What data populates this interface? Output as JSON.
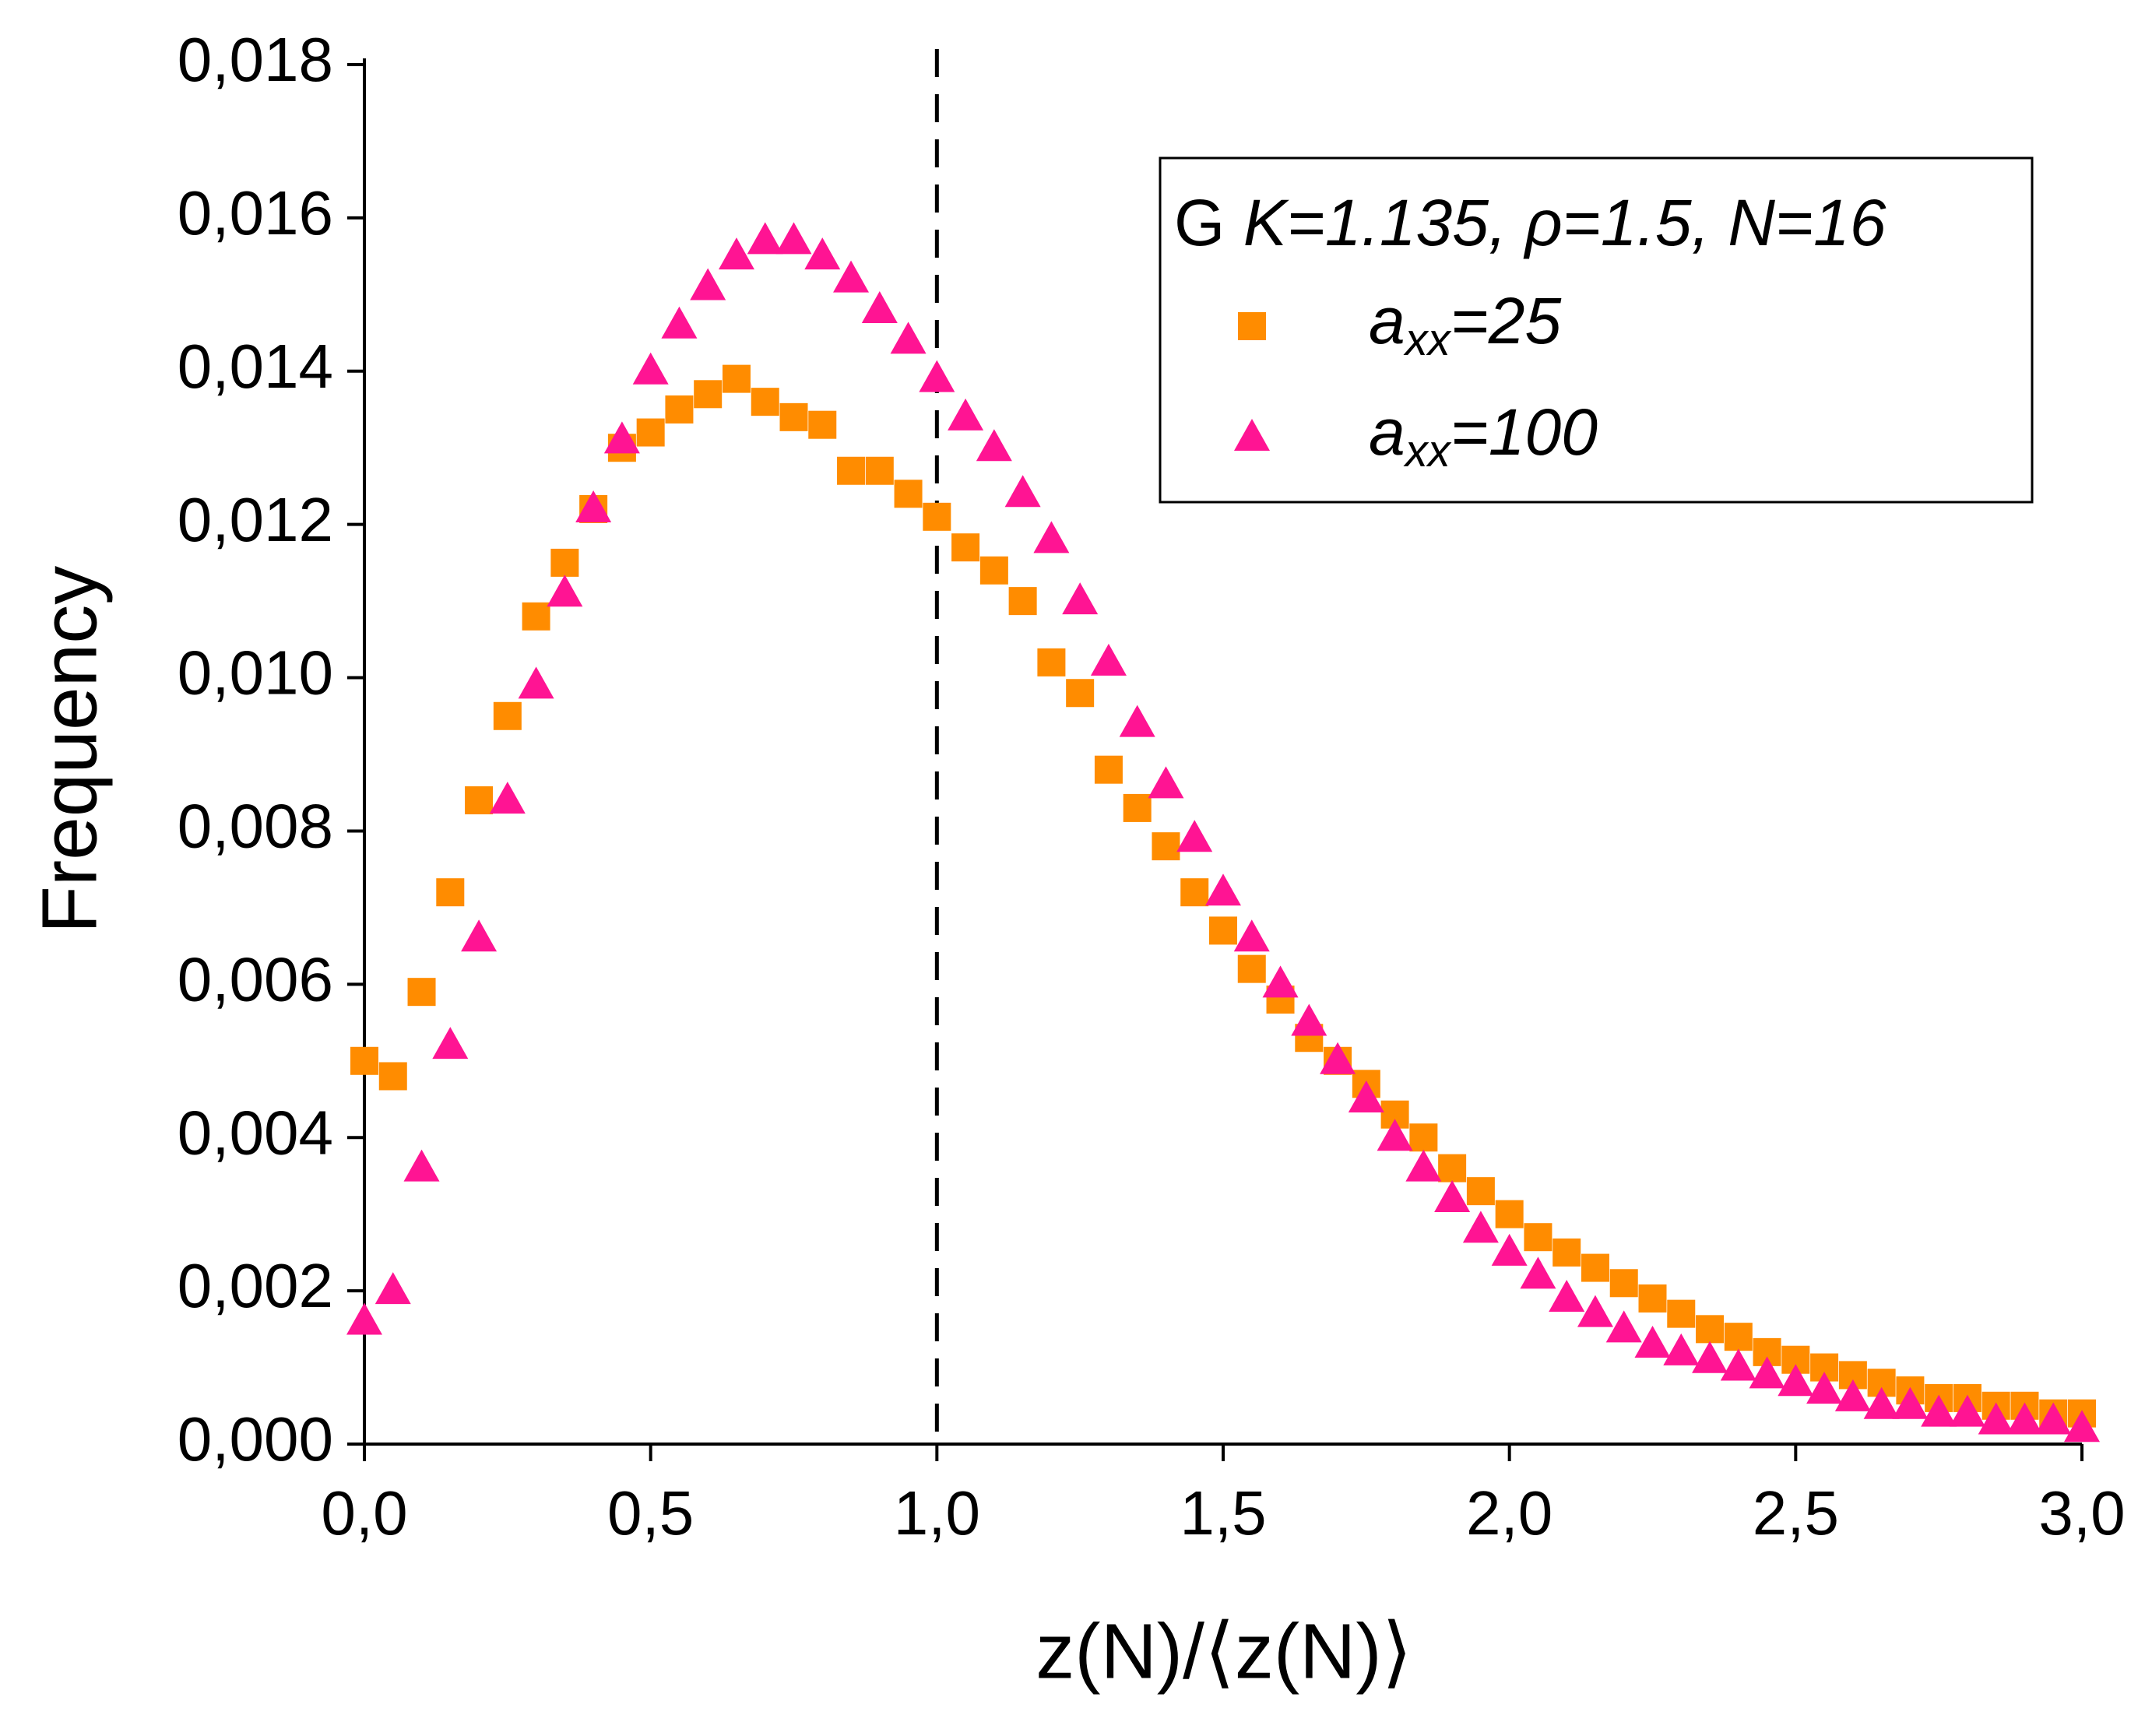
{
  "chart_data": {
    "type": "scatter",
    "x_label": "z(N)/⟨z(N)⟩",
    "y_label": "Frequency",
    "legend_title": "G K=1.135, ρ=1.5, N=16",
    "legend": "upper right",
    "x": [
      0,
      0.05,
      0.1,
      0.15,
      0.2,
      0.25,
      0.3,
      0.35,
      0.4,
      0.45,
      0.5,
      0.55,
      0.6,
      0.65,
      0.7,
      0.75,
      0.8,
      0.85,
      0.9,
      0.95,
      1,
      1.05,
      1.1,
      1.15,
      1.2,
      1.25,
      1.3,
      1.35,
      1.4,
      1.45,
      1.5,
      1.55,
      1.6,
      1.65,
      1.7,
      1.75,
      1.8,
      1.85,
      1.9,
      1.95,
      2,
      2.05,
      2.1,
      2.15,
      2.2,
      2.25,
      2.3,
      2.35,
      2.4,
      2.45,
      2.5,
      2.55,
      2.6,
      2.65,
      2.7,
      2.75,
      2.8,
      2.85,
      2.9,
      2.95,
      3
    ],
    "series": [
      {
        "name": "axx=25",
        "color": "#ff8c00",
        "marker": "square",
        "values": [
          0.005,
          0.0048,
          0.0059,
          0.0072,
          0.0084,
          0.0095,
          0.0108,
          0.0115,
          0.0122,
          0.013,
          0.0132,
          0.0135,
          0.0137,
          0.0139,
          0.0136,
          0.0134,
          0.0133,
          0.0127,
          0.0127,
          0.0124,
          0.0121,
          0.0117,
          0.0114,
          0.011,
          0.0102,
          0.0098,
          0.0088,
          0.0083,
          0.0078,
          0.0072,
          0.0067,
          0.0062,
          0.0058,
          0.0053,
          0.005,
          0.0047,
          0.0043,
          0.004,
          0.0036,
          0.0033,
          0.003,
          0.0027,
          0.0025,
          0.0023,
          0.0021,
          0.0019,
          0.0017,
          0.0015,
          0.0014,
          0.0012,
          0.0011,
          0.001,
          0.0009,
          0.0008,
          0.0007,
          0.0006,
          0.0006,
          0.0005,
          0.0005,
          0.0004,
          0.0004
        ]
      },
      {
        "name": "axx=100",
        "color": "#ff1493",
        "marker": "triangle",
        "values": [
          0.0016,
          0.002,
          0.0036,
          0.0052,
          0.0066,
          0.0084,
          0.0099,
          0.0111,
          0.0122,
          0.0131,
          0.014,
          0.0146,
          0.0151,
          0.0155,
          0.0157,
          0.0157,
          0.0155,
          0.0152,
          0.0148,
          0.0144,
          0.0139,
          0.0134,
          0.013,
          0.0124,
          0.0118,
          0.011,
          0.0102,
          0.0094,
          0.0086,
          0.0079,
          0.0072,
          0.0066,
          0.006,
          0.0055,
          0.005,
          0.0045,
          0.004,
          0.0036,
          0.0032,
          0.0028,
          0.0025,
          0.0022,
          0.0019,
          0.0017,
          0.0015,
          0.0013,
          0.0012,
          0.0011,
          0.001,
          0.0009,
          0.0008,
          0.0007,
          0.0006,
          0.0005,
          0.0005,
          0.0004,
          0.0004,
          0.0003,
          0.0003,
          0.0003,
          0.0002
        ]
      }
    ],
    "reference_line": {
      "x": 1,
      "style": "dashed"
    },
    "xlim": [
      0,
      3
    ],
    "ylim": [
      0,
      0.018
    ],
    "xticks": [
      {
        "value": 0,
        "label": "0,0"
      },
      {
        "value": 0.5,
        "label": "0,5"
      },
      {
        "value": 1,
        "label": "1,0"
      },
      {
        "value": 1.5,
        "label": "1,5"
      },
      {
        "value": 2,
        "label": "2,0"
      },
      {
        "value": 2.5,
        "label": "2,5"
      },
      {
        "value": 3,
        "label": "3,0"
      }
    ],
    "yticks": [
      {
        "value": 0,
        "label": "0,000"
      },
      {
        "value": 0.002,
        "label": "0,002"
      },
      {
        "value": 0.004,
        "label": "0,004"
      },
      {
        "value": 0.006,
        "label": "0,006"
      },
      {
        "value": 0.008,
        "label": "0,008"
      },
      {
        "value": 0.01,
        "label": "0,010"
      },
      {
        "value": 0.012,
        "label": "0,012"
      },
      {
        "value": 0.014,
        "label": "0,014"
      },
      {
        "value": 0.016,
        "label": "0,016"
      },
      {
        "value": 0.018,
        "label": "0,018"
      }
    ],
    "grid": false
  }
}
